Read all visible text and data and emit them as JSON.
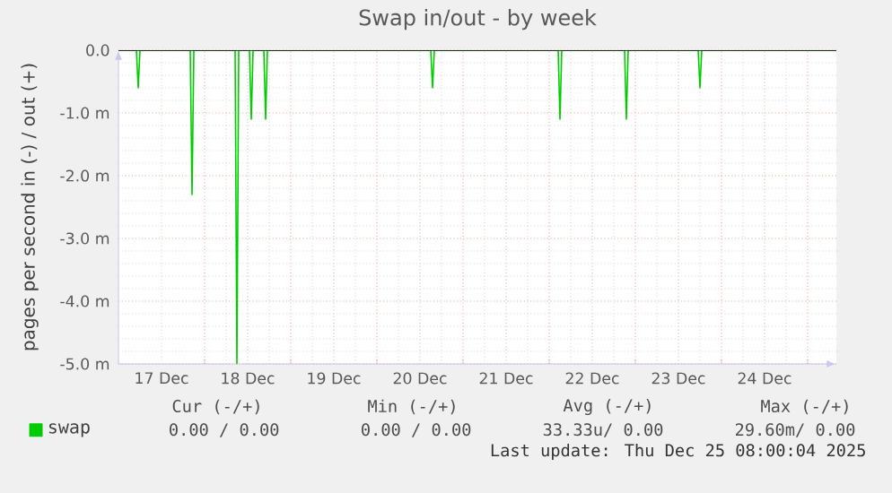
{
  "chart_data": {
    "type": "line",
    "title": "Swap in/out - by week",
    "ylabel": "pages per second in (-) / out (+)",
    "x": [
      "2025-12-17T00:00",
      "2025-12-17T05:00",
      "2025-12-17T05:30",
      "2025-12-17T06:00",
      "2025-12-17T20:00",
      "2025-12-17T20:30",
      "2025-12-17T21:00",
      "2025-12-18T08:30",
      "2025-12-18T09:00",
      "2025-12-18T09:30",
      "2025-12-18T12:30",
      "2025-12-18T13:00",
      "2025-12-18T13:30",
      "2025-12-18T16:30",
      "2025-12-18T17:00",
      "2025-12-18T17:30",
      "2025-12-20T15:00",
      "2025-12-20T15:30",
      "2025-12-20T16:00",
      "2025-12-22T02:30",
      "2025-12-22T03:00",
      "2025-12-22T03:30",
      "2025-12-22T21:00",
      "2025-12-22T21:30",
      "2025-12-22T22:00",
      "2025-12-23T17:30",
      "2025-12-23T18:00",
      "2025-12-23T18:30",
      "2025-12-25T08:00"
    ],
    "series": [
      {
        "name": "swap",
        "color": "#00cc00",
        "values": [
          0,
          0,
          -0.6,
          0,
          0,
          -2.3,
          0,
          0,
          -5.0,
          0,
          0,
          -1.1,
          0,
          0,
          -1.1,
          0,
          0,
          -0.6,
          0,
          0,
          -1.1,
          0,
          0,
          -1.1,
          0,
          0,
          -0.6,
          0,
          0
        ]
      }
    ],
    "xlim": [
      "2025-12-17T00:00",
      "2025-12-25T08:00"
    ],
    "xticks": [
      {
        "value": "2025-12-17T12:00",
        "label": "17 Dec"
      },
      {
        "value": "2025-12-18T00:00",
        "label": null
      },
      {
        "value": "2025-12-18T12:00",
        "label": "18 Dec"
      },
      {
        "value": "2025-12-19T00:00",
        "label": null
      },
      {
        "value": "2025-12-19T12:00",
        "label": "19 Dec"
      },
      {
        "value": "2025-12-20T00:00",
        "label": null
      },
      {
        "value": "2025-12-20T12:00",
        "label": "20 Dec"
      },
      {
        "value": "2025-12-21T00:00",
        "label": null
      },
      {
        "value": "2025-12-21T12:00",
        "label": "21 Dec"
      },
      {
        "value": "2025-12-22T00:00",
        "label": null
      },
      {
        "value": "2025-12-22T12:00",
        "label": "22 Dec"
      },
      {
        "value": "2025-12-23T00:00",
        "label": null
      },
      {
        "value": "2025-12-23T12:00",
        "label": "23 Dec"
      },
      {
        "value": "2025-12-24T00:00",
        "label": null
      },
      {
        "value": "2025-12-24T12:00",
        "label": "24 Dec"
      },
      {
        "value": "2025-12-25T00:00",
        "label": null
      }
    ],
    "ylim": [
      -5,
      0
    ],
    "yticks": [
      {
        "value": 0,
        "label": "0.0"
      },
      {
        "value": -1,
        "label": "-1.0 m"
      },
      {
        "value": -2,
        "label": "-2.0 m"
      },
      {
        "value": -3,
        "label": "-3.0 m"
      },
      {
        "value": -4,
        "label": "-4.0 m"
      },
      {
        "value": -5,
        "label": "-5.0 m"
      }
    ],
    "ref_lines": [
      {
        "axis": "y",
        "value": 0,
        "color": "#000000"
      }
    ],
    "grid": true,
    "legend": "bottom",
    "marker": "none",
    "line_style": "solid",
    "annotations": [
      "Cur (-/+)",
      "Min (-/+)",
      "Avg (-/+)",
      "Max (-/+)",
      "0.00 / 0.00",
      "0.00 / 0.00",
      "33.33u/ 0.00",
      "29.60m/ 0.00",
      "Last update: Thu Dec 25 08:00:04 2025"
    ]
  }
}
